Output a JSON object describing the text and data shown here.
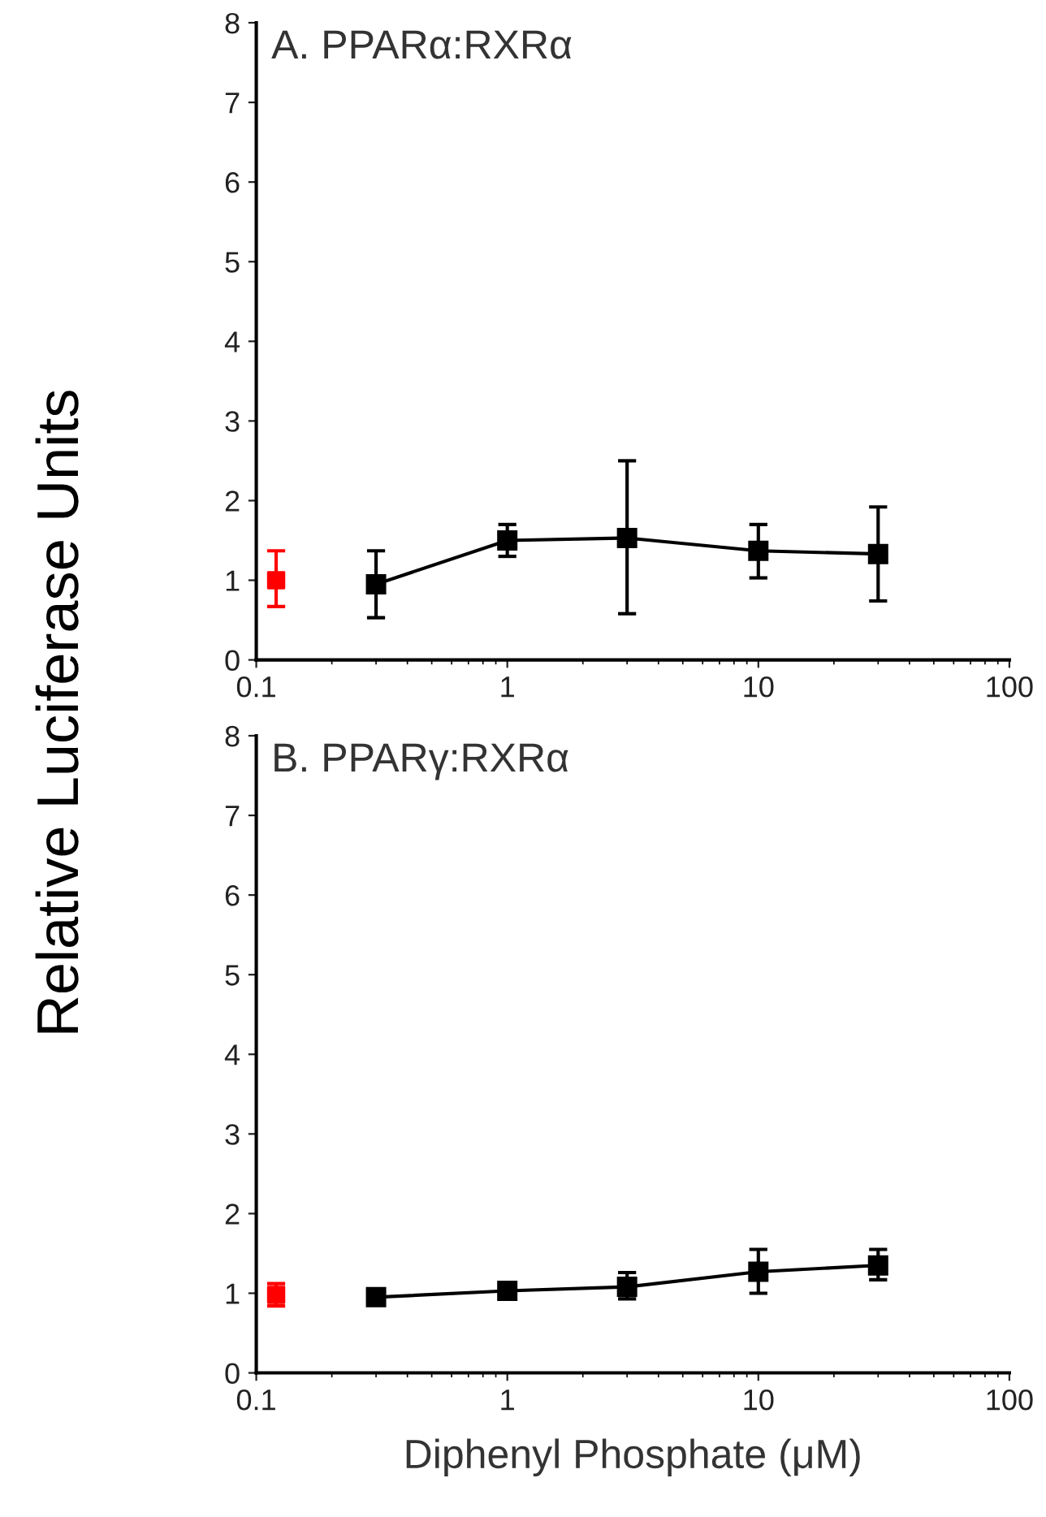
{
  "chart_data": [
    {
      "type": "line",
      "title": "A. PPARα:RXRα",
      "ylabel": "Relative Luciferase Units",
      "log": "x",
      "xlim": [
        0.1,
        100
      ],
      "xticks": [
        0.1,
        1,
        10,
        100
      ],
      "ylim": [
        0,
        8
      ],
      "yticks": [
        0,
        1,
        2,
        3,
        4,
        5,
        6,
        7,
        8
      ],
      "grid": false,
      "legend": false,
      "marker": "square",
      "line_style": "solid",
      "series": [
        {
          "type": "scatter",
          "color": "#ff0000",
          "x": [
            0.12
          ],
          "values": [
            1.0
          ],
          "errors": [
            [
              0.67,
              1.37
            ]
          ]
        },
        {
          "color": "#000000",
          "x": [
            0.3,
            1,
            3,
            10,
            30
          ],
          "values": [
            0.95,
            1.5,
            1.53,
            1.37,
            1.33
          ],
          "errors": [
            [
              0.53,
              1.37
            ],
            [
              1.3,
              1.7
            ],
            [
              0.58,
              2.5
            ],
            [
              1.03,
              1.7
            ],
            [
              0.74,
              1.92
            ]
          ]
        }
      ]
    },
    {
      "type": "line",
      "title": "B. PPARγ:RXRα",
      "xlabel": "Diphenyl Phosphate (μM)",
      "log": "x",
      "xlim": [
        0.1,
        100
      ],
      "xticks": [
        0.1,
        1,
        10,
        100
      ],
      "ylim": [
        0,
        8
      ],
      "yticks": [
        0,
        1,
        2,
        3,
        4,
        5,
        6,
        7,
        8
      ],
      "grid": false,
      "legend": false,
      "marker": "square",
      "line_style": "solid",
      "series": [
        {
          "type": "scatter",
          "color": "#ff0000",
          "x": [
            0.12
          ],
          "values": [
            0.98
          ],
          "errors": [
            [
              0.84,
              1.12
            ]
          ]
        },
        {
          "color": "#000000",
          "x": [
            0.3,
            1,
            3,
            10,
            30
          ],
          "values": [
            0.95,
            1.03,
            1.08,
            1.27,
            1.35
          ],
          "errors": [
            null,
            [
              0.95,
              1.1
            ],
            [
              0.93,
              1.26
            ],
            [
              1.0,
              1.55
            ],
            [
              1.17,
              1.55
            ]
          ]
        }
      ]
    }
  ]
}
